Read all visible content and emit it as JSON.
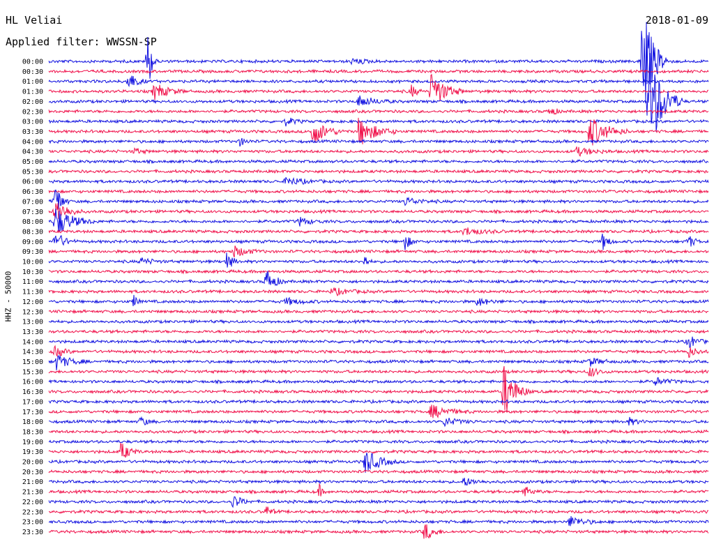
{
  "header": {
    "station": "HL Veliai",
    "filter": "Applied filter: WWSSN-SP",
    "date": "2018-01-09"
  },
  "chart_data": {
    "type": "line",
    "title": "HL Veliai",
    "subtitle": "Applied filter: WWSSN-SP",
    "ylabel": "HHZ - 50000",
    "colors": [
      "#1010e0",
      "#f0104a"
    ],
    "rows": [
      "00:00",
      "00:30",
      "01:00",
      "01:30",
      "02:00",
      "02:30",
      "03:00",
      "03:30",
      "04:00",
      "04:30",
      "05:00",
      "05:30",
      "06:00",
      "06:30",
      "07:00",
      "07:30",
      "08:00",
      "08:30",
      "09:00",
      "09:30",
      "10:00",
      "10:30",
      "11:00",
      "11:30",
      "12:00",
      "12:30",
      "13:00",
      "13:30",
      "14:00",
      "14:30",
      "15:00",
      "15:30",
      "16:00",
      "16:30",
      "17:00",
      "17:30",
      "18:00",
      "18:30",
      "19:00",
      "19:30",
      "20:00",
      "20:30",
      "21:00",
      "21:30",
      "22:00",
      "22:30",
      "23:00",
      "23:30"
    ],
    "row_minutes": 30,
    "events": [
      {
        "row": 0,
        "t": 0.15,
        "amp": 45,
        "len": 0.015
      },
      {
        "row": 0,
        "t": 0.46,
        "amp": 4,
        "len": 0.05
      },
      {
        "row": 0,
        "t": 0.9,
        "amp": 90,
        "len": 0.04
      },
      {
        "row": 2,
        "t": 0.12,
        "amp": 14,
        "len": 0.03
      },
      {
        "row": 3,
        "t": 0.16,
        "amp": 12,
        "len": 0.05
      },
      {
        "row": 3,
        "t": 0.55,
        "amp": 9,
        "len": 0.02
      },
      {
        "row": 3,
        "t": 0.58,
        "amp": 28,
        "len": 0.05
      },
      {
        "row": 4,
        "t": 0.47,
        "amp": 8,
        "len": 0.06
      },
      {
        "row": 4,
        "t": 0.91,
        "amp": 80,
        "len": 0.05
      },
      {
        "row": 5,
        "t": 0.76,
        "amp": 8,
        "len": 0.02
      },
      {
        "row": 6,
        "t": 0.36,
        "amp": 6,
        "len": 0.03
      },
      {
        "row": 7,
        "t": 0.4,
        "amp": 20,
        "len": 0.05
      },
      {
        "row": 7,
        "t": 0.47,
        "amp": 22,
        "len": 0.06
      },
      {
        "row": 7,
        "t": 0.82,
        "amp": 24,
        "len": 0.06
      },
      {
        "row": 8,
        "t": 0.29,
        "amp": 6,
        "len": 0.02
      },
      {
        "row": 9,
        "t": 0.13,
        "amp": 4,
        "len": 0.03
      },
      {
        "row": 9,
        "t": 0.8,
        "amp": 6,
        "len": 0.06
      },
      {
        "row": 12,
        "t": 0.36,
        "amp": 6,
        "len": 0.06
      },
      {
        "row": 14,
        "t": 0.01,
        "amp": 30,
        "len": 0.02
      },
      {
        "row": 14,
        "t": 0.54,
        "amp": 6,
        "len": 0.05
      },
      {
        "row": 15,
        "t": 0.01,
        "amp": 20,
        "len": 0.04
      },
      {
        "row": 16,
        "t": 0.01,
        "amp": 22,
        "len": 0.06
      },
      {
        "row": 16,
        "t": 0.38,
        "amp": 6,
        "len": 0.04
      },
      {
        "row": 17,
        "t": 0.63,
        "amp": 6,
        "len": 0.06
      },
      {
        "row": 18,
        "t": 0.01,
        "amp": 15,
        "len": 0.03
      },
      {
        "row": 18,
        "t": 0.54,
        "amp": 12,
        "len": 0.02
      },
      {
        "row": 18,
        "t": 0.84,
        "amp": 12,
        "len": 0.02
      },
      {
        "row": 18,
        "t": 0.97,
        "amp": 10,
        "len": 0.02
      },
      {
        "row": 19,
        "t": 0.28,
        "amp": 8,
        "len": 0.05
      },
      {
        "row": 20,
        "t": 0.27,
        "amp": 14,
        "len": 0.02
      },
      {
        "row": 20,
        "t": 0.48,
        "amp": 10,
        "len": 0.01
      },
      {
        "row": 20,
        "t": 0.14,
        "amp": 5,
        "len": 0.04
      },
      {
        "row": 22,
        "t": 0.33,
        "amp": 18,
        "len": 0.03
      },
      {
        "row": 23,
        "t": 0.43,
        "amp": 5,
        "len": 0.06
      },
      {
        "row": 24,
        "t": 0.13,
        "amp": 12,
        "len": 0.01
      },
      {
        "row": 24,
        "t": 0.36,
        "amp": 5,
        "len": 0.05
      },
      {
        "row": 24,
        "t": 0.65,
        "amp": 6,
        "len": 0.04
      },
      {
        "row": 28,
        "t": 0.97,
        "amp": 10,
        "len": 0.03
      },
      {
        "row": 29,
        "t": 0.01,
        "amp": 8,
        "len": 0.03
      },
      {
        "row": 29,
        "t": 0.97,
        "amp": 8,
        "len": 0.03
      },
      {
        "row": 30,
        "t": 0.01,
        "amp": 12,
        "len": 0.05
      },
      {
        "row": 30,
        "t": 0.82,
        "amp": 6,
        "len": 0.04
      },
      {
        "row": 31,
        "t": 0.82,
        "amp": 8,
        "len": 0.03
      },
      {
        "row": 32,
        "t": 0.92,
        "amp": 6,
        "len": 0.04
      },
      {
        "row": 33,
        "t": 0.69,
        "amp": 40,
        "len": 0.04
      },
      {
        "row": 35,
        "t": 0.58,
        "amp": 10,
        "len": 0.06
      },
      {
        "row": 36,
        "t": 0.14,
        "amp": 8,
        "len": 0.02
      },
      {
        "row": 36,
        "t": 0.6,
        "amp": 6,
        "len": 0.05
      },
      {
        "row": 36,
        "t": 0.88,
        "amp": 5,
        "len": 0.03
      },
      {
        "row": 39,
        "t": 0.11,
        "amp": 14,
        "len": 0.03
      },
      {
        "row": 40,
        "t": 0.48,
        "amp": 18,
        "len": 0.05
      },
      {
        "row": 42,
        "t": 0.63,
        "amp": 6,
        "len": 0.04
      },
      {
        "row": 43,
        "t": 0.41,
        "amp": 10,
        "len": 0.01
      },
      {
        "row": 43,
        "t": 0.72,
        "amp": 8,
        "len": 0.03
      },
      {
        "row": 44,
        "t": 0.28,
        "amp": 10,
        "len": 0.03
      },
      {
        "row": 45,
        "t": 0.33,
        "amp": 8,
        "len": 0.02
      },
      {
        "row": 46,
        "t": 0.79,
        "amp": 8,
        "len": 0.05
      },
      {
        "row": 47,
        "t": 0.57,
        "amp": 14,
        "len": 0.03
      }
    ]
  }
}
